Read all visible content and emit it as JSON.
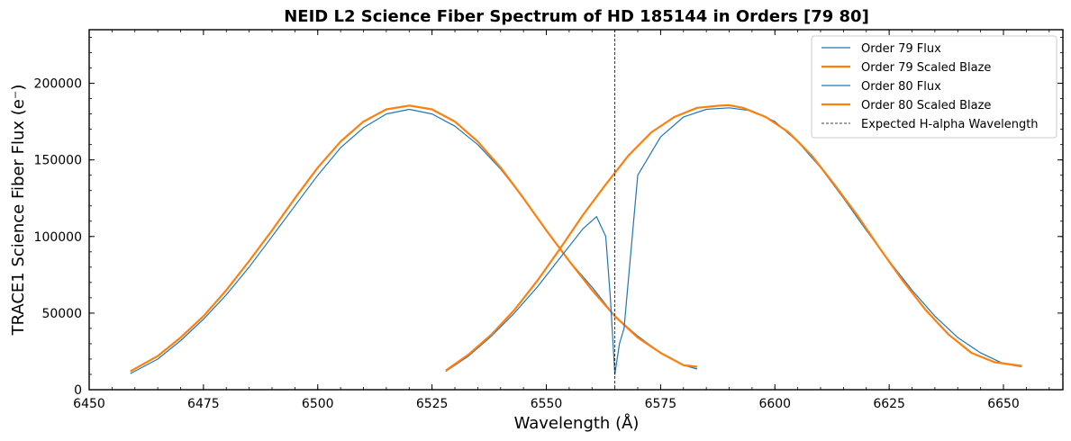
{
  "chart_data": {
    "type": "line",
    "title": "NEID L2 Science Fiber Spectrum of HD 185144 in Orders [79 80]",
    "xlabel": "Wavelength (Å)",
    "ylabel": "TRACE1 Science Fiber Flux (e⁻)",
    "xlim": [
      6450,
      6663
    ],
    "ylim": [
      0,
      235000
    ],
    "xticks": [
      6450,
      6475,
      6500,
      6525,
      6550,
      6575,
      6600,
      6625,
      6650
    ],
    "yticks": [
      0,
      50000,
      100000,
      150000,
      200000
    ],
    "grid": false,
    "legend_position": "top-right",
    "colors": {
      "flux": "#1f77b4",
      "blaze": "#ff7f0e",
      "reference": "#000000"
    },
    "series": [
      {
        "name": "Order 79 Flux",
        "style": "line",
        "x": [
          6459,
          6465,
          6470,
          6475,
          6480,
          6485,
          6490,
          6495,
          6500,
          6505,
          6510,
          6515,
          6520,
          6525,
          6530,
          6535,
          6540,
          6545,
          6550,
          6555,
          6560,
          6565,
          6570,
          6575,
          6580,
          6583
        ],
        "y": [
          10500,
          20000,
          32000,
          46000,
          62000,
          80000,
          100000,
          120000,
          140000,
          158000,
          171000,
          180000,
          183000,
          180000,
          172000,
          160000,
          144000,
          125000,
          104000,
          84000,
          67000,
          48000,
          35000,
          24000,
          16000,
          13500
        ]
      },
      {
        "name": "Order 79 Scaled Blaze",
        "style": "line",
        "x": [
          6459,
          6465,
          6470,
          6475,
          6480,
          6485,
          6490,
          6495,
          6500,
          6505,
          6510,
          6515,
          6520,
          6525,
          6530,
          6535,
          6540,
          6545,
          6550,
          6555,
          6560,
          6565,
          6570,
          6575,
          6580,
          6583
        ],
        "y": [
          12000,
          22000,
          34000,
          48000,
          65000,
          84000,
          104000,
          125000,
          145000,
          162000,
          175000,
          183000,
          185500,
          183000,
          175000,
          162000,
          145000,
          125000,
          104000,
          84000,
          65000,
          48000,
          34000,
          24000,
          16000,
          15000
        ]
      },
      {
        "name": "Order 80 Flux",
        "style": "line",
        "x": [
          6528,
          6533,
          6538,
          6543,
          6548,
          6553,
          6558,
          6561,
          6563,
          6564,
          6565,
          6566,
          6567,
          6570,
          6575,
          6580,
          6585,
          6590,
          6595,
          6600,
          6605,
          6610,
          6615,
          6620,
          6625,
          6630,
          6635,
          6640,
          6645,
          6650,
          6654
        ],
        "y": [
          12000,
          22000,
          35000,
          50000,
          67000,
          86000,
          105000,
          113000,
          100000,
          60000,
          10000,
          30000,
          40000,
          140000,
          165000,
          178000,
          183000,
          184000,
          182000,
          175000,
          162000,
          145000,
          125000,
          104000,
          84000,
          65000,
          48000,
          34000,
          24000,
          17000,
          15000
        ]
      },
      {
        "name": "Order 80 Scaled Blaze",
        "style": "line",
        "x": [
          6528,
          6533,
          6538,
          6543,
          6548,
          6553,
          6558,
          6563,
          6568,
          6573,
          6578,
          6583,
          6588,
          6590,
          6593,
          6598,
          6603,
          6608,
          6613,
          6618,
          6623,
          6628,
          6633,
          6638,
          6643,
          6648,
          6654
        ],
        "y": [
          12500,
          23000,
          36000,
          52000,
          71000,
          92000,
          114000,
          134000,
          153000,
          168000,
          178000,
          184000,
          185500,
          185700,
          184000,
          178000,
          168000,
          153000,
          134000,
          114000,
          92000,
          71000,
          52000,
          36000,
          24000,
          18000,
          15500
        ]
      }
    ],
    "reference_lines": [
      {
        "name": "Expected H-alpha Wavelength",
        "x": 6565,
        "style": "dashed"
      }
    ]
  }
}
